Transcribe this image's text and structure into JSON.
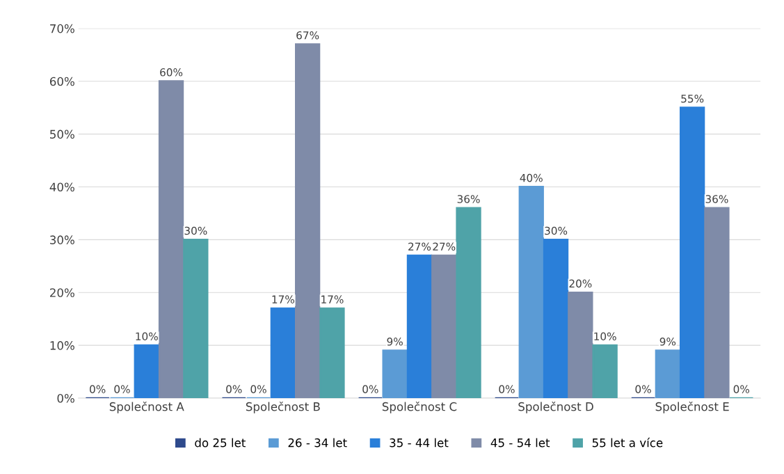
{
  "chart_data": {
    "type": "bar",
    "categories": [
      "Společnost A",
      "Společnost B",
      "Společnost C",
      "Společnost D",
      "Společnost E"
    ],
    "series": [
      {
        "name": "do 25 let",
        "color": "#2e4a8c",
        "values": [
          0,
          0,
          0,
          0,
          0
        ],
        "value_labels": [
          "0%",
          "0%",
          "0%",
          "0%",
          "0%"
        ]
      },
      {
        "name": "26 - 34 let",
        "color": "#5b9bd5",
        "values": [
          0,
          0,
          9,
          40,
          9
        ],
        "value_labels": [
          "0%",
          "0%",
          "9%",
          "40%",
          "9%"
        ]
      },
      {
        "name": "35 - 44 let",
        "color": "#2a7fd9",
        "values": [
          10,
          17,
          27,
          30,
          55
        ],
        "value_labels": [
          "10%",
          "17%",
          "27%",
          "30%",
          "55%"
        ]
      },
      {
        "name": "45 - 54 let",
        "color": "#7f8ba8",
        "values": [
          60,
          67,
          27,
          20,
          36
        ],
        "value_labels": [
          "60%",
          "67%",
          "27%",
          "20%",
          "36%"
        ]
      },
      {
        "name": "55 let a více",
        "color": "#4fa3a8",
        "values": [
          30,
          17,
          36,
          10,
          0
        ],
        "value_labels": [
          "30%",
          "17%",
          "36%",
          "10%",
          "0%"
        ]
      }
    ],
    "ylim": [
      0,
      70
    ],
    "yticks": [
      {
        "value": 0,
        "label": "0%"
      },
      {
        "value": 10,
        "label": "10%"
      },
      {
        "value": 20,
        "label": "20%"
      },
      {
        "value": 30,
        "label": "30%"
      },
      {
        "value": 40,
        "label": "40%"
      },
      {
        "value": 50,
        "label": "50%"
      },
      {
        "value": 60,
        "label": "60%"
      },
      {
        "value": 70,
        "label": "70%"
      }
    ],
    "grid": "y",
    "legend": "bottom"
  }
}
